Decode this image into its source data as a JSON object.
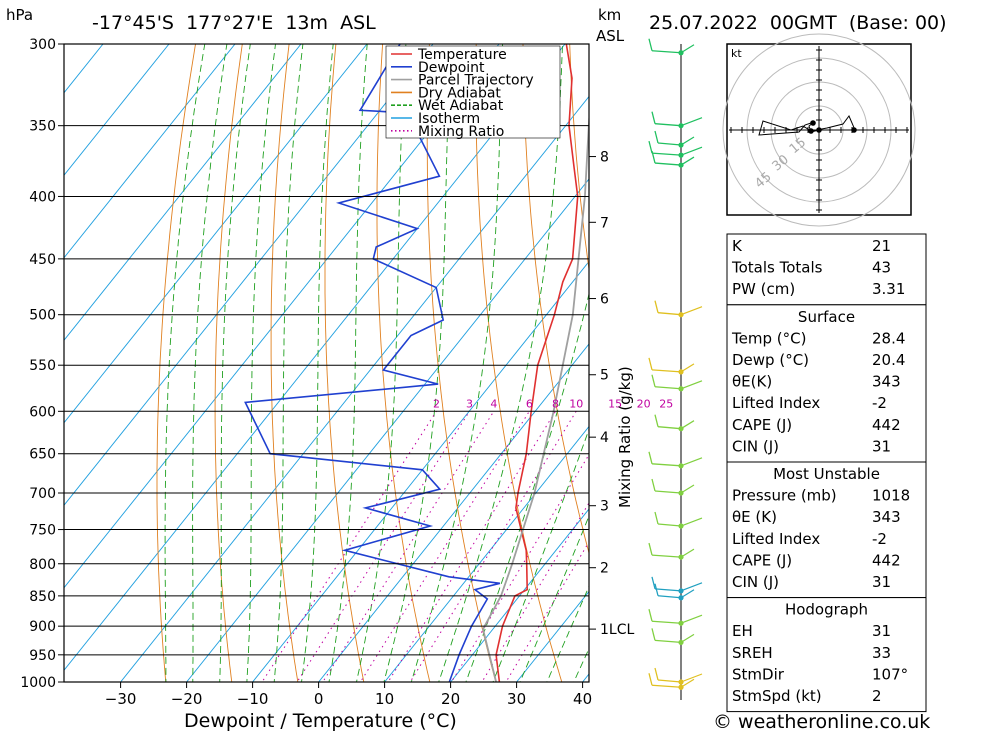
{
  "header": {
    "pressure_unit": "hPa",
    "location": "-17°45'S  177°27'E  13m  ASL",
    "km_label": "km",
    "asl_label": "ASL",
    "datetime": "25.07.2022  00GMT  (Base: 00)"
  },
  "footer": {
    "copyright": "© weatheronline.co.uk"
  },
  "colors": {
    "temperature": "#e03030",
    "dewpoint": "#2040d0",
    "parcel": "#a0a0a0",
    "dry_adiabat": "#e08020",
    "wet_adiabat": "#20a020",
    "isotherm": "#20a0e0",
    "mixing_ratio": "#c000a0"
  },
  "chart_data": {
    "type": "line",
    "title": "",
    "xlabel": "Dewpoint / Temperature (°C)",
    "ylabel": "hPa",
    "secondary_ylabel": "Mixing Ratio (g/kg)",
    "xlim": [
      -40,
      40
    ],
    "ylim": [
      1000,
      300
    ],
    "pressure_ticks": [
      300,
      350,
      400,
      450,
      500,
      550,
      600,
      650,
      700,
      750,
      800,
      850,
      900,
      950,
      1000
    ],
    "temperature_ticks": [
      -30,
      -20,
      -10,
      0,
      10,
      20,
      30,
      40
    ],
    "height_ticks": [
      {
        "label": "8",
        "pressure": 371
      },
      {
        "label": "7",
        "pressure": 420
      },
      {
        "label": "6",
        "pressure": 485
      },
      {
        "label": "5",
        "pressure": 560
      },
      {
        "label": "4",
        "pressure": 630
      },
      {
        "label": "3",
        "pressure": 717
      },
      {
        "label": "2",
        "pressure": 806
      },
      {
        "label": "1LCL",
        "pressure": 905
      }
    ],
    "mixing_ratio_labels": [
      "2",
      "3",
      "4",
      "6",
      "8",
      "10",
      "15",
      "20",
      "25"
    ],
    "legend": [
      "Temperature",
      "Dewpoint",
      "Parcel Trajectory",
      "Dry Adiabat",
      "Wet Adiabat",
      "Isotherm",
      "Mixing Ratio"
    ],
    "legend_position": "top-right",
    "series": [
      {
        "name": "Temperature",
        "points": [
          {
            "p": 1018,
            "t": 28.4
          },
          {
            "p": 1000,
            "t": 27.4
          },
          {
            "p": 950,
            "t": 23.6
          },
          {
            "p": 900,
            "t": 21.1
          },
          {
            "p": 850,
            "t": 19.3
          },
          {
            "p": 840,
            "t": 20.4
          },
          {
            "p": 800,
            "t": 17.2
          },
          {
            "p": 780,
            "t": 15.5
          },
          {
            "p": 750,
            "t": 12.2
          },
          {
            "p": 720,
            "t": 8.8
          },
          {
            "p": 700,
            "t": 7.3
          },
          {
            "p": 650,
            "t": 3.8
          },
          {
            "p": 600,
            "t": -0.6
          },
          {
            "p": 550,
            "t": -5.2
          },
          {
            "p": 500,
            "t": -8.8
          },
          {
            "p": 470,
            "t": -11.5
          },
          {
            "p": 450,
            "t": -12.8
          },
          {
            "p": 400,
            "t": -19.6
          },
          {
            "p": 380,
            "t": -23.4
          },
          {
            "p": 350,
            "t": -29.5
          },
          {
            "p": 320,
            "t": -34.8
          },
          {
            "p": 300,
            "t": -39.8
          }
        ]
      },
      {
        "name": "Dewpoint",
        "points": [
          {
            "p": 1018,
            "t": 20.4
          },
          {
            "p": 1000,
            "t": 19.8
          },
          {
            "p": 950,
            "t": 18.0
          },
          {
            "p": 900,
            "t": 16.4
          },
          {
            "p": 855,
            "t": 15.5
          },
          {
            "p": 840,
            "t": 12.5
          },
          {
            "p": 830,
            "t": 15.5
          },
          {
            "p": 820,
            "t": 7.0
          },
          {
            "p": 780,
            "t": -12.0
          },
          {
            "p": 745,
            "t": -2.0
          },
          {
            "p": 720,
            "t": -14.0
          },
          {
            "p": 695,
            "t": -5.0
          },
          {
            "p": 670,
            "t": -10.0
          },
          {
            "p": 650,
            "t": -35.0
          },
          {
            "p": 590,
            "t": -45.0
          },
          {
            "p": 570,
            "t": -18.0
          },
          {
            "p": 555,
            "t": -28.0
          },
          {
            "p": 520,
            "t": -28.0
          },
          {
            "p": 505,
            "t": -25.0
          },
          {
            "p": 475,
            "t": -30.0
          },
          {
            "p": 450,
            "t": -43.0
          },
          {
            "p": 440,
            "t": -44.0
          },
          {
            "p": 425,
            "t": -40.0
          },
          {
            "p": 405,
            "t": -55.0
          },
          {
            "p": 385,
            "t": -43.0
          },
          {
            "p": 350,
            "t": -53.0
          },
          {
            "p": 345,
            "t": -40.0
          },
          {
            "p": 340,
            "t": -63.0
          },
          {
            "p": 300,
            "t": -65.0
          }
        ]
      },
      {
        "name": "Parcel Trajectory",
        "points": [
          {
            "p": 1018,
            "t": 28.4
          },
          {
            "p": 905,
            "t": 18.5
          },
          {
            "p": 850,
            "t": 17.2
          },
          {
            "p": 800,
            "t": 15.0
          },
          {
            "p": 700,
            "t": 9.8
          },
          {
            "p": 600,
            "t": 2.8
          },
          {
            "p": 500,
            "t": -6.0
          },
          {
            "p": 400,
            "t": -18.5
          },
          {
            "p": 350,
            "t": -26.5
          },
          {
            "p": 300,
            "t": -35.5
          }
        ]
      }
    ],
    "wind_barbs": [
      {
        "p": 305
      },
      {
        "p": 350
      },
      {
        "p": 363
      },
      {
        "p": 370
      },
      {
        "p": 377
      },
      {
        "p": 500
      },
      {
        "p": 557
      },
      {
        "p": 575
      },
      {
        "p": 620
      },
      {
        "p": 665
      },
      {
        "p": 700
      },
      {
        "p": 745
      },
      {
        "p": 790
      },
      {
        "p": 842
      },
      {
        "p": 853
      },
      {
        "p": 895
      },
      {
        "p": 928
      },
      {
        "p": 1000
      },
      {
        "p": 1010
      }
    ]
  },
  "hodograph": {
    "unit_label": "kt",
    "ring_labels": [
      "15",
      "30",
      "45"
    ]
  },
  "indices": {
    "rows_top": [
      {
        "label": "K",
        "value": "21"
      },
      {
        "label": "Totals Totals",
        "value": "43"
      },
      {
        "label": "PW (cm)",
        "value": "3.31"
      }
    ],
    "surface": {
      "title": "Surface",
      "rows": [
        {
          "label": "Temp (°C)",
          "value": "28.4"
        },
        {
          "label": "Dewp (°C)",
          "value": "20.4"
        },
        {
          "label": "θE(K)",
          "value": "343"
        },
        {
          "label": "Lifted Index",
          "value": "-2"
        },
        {
          "label": "CAPE (J)",
          "value": "442"
        },
        {
          "label": "CIN (J)",
          "value": "31"
        }
      ]
    },
    "most_unstable": {
      "title": "Most Unstable",
      "rows": [
        {
          "label": "Pressure (mb)",
          "value": "1018"
        },
        {
          "label": "θE (K)",
          "value": "343"
        },
        {
          "label": "Lifted Index",
          "value": "-2"
        },
        {
          "label": "CAPE (J)",
          "value": "442"
        },
        {
          "label": "CIN (J)",
          "value": "31"
        }
      ]
    },
    "hodograph_box": {
      "title": "Hodograph",
      "rows": [
        {
          "label": "EH",
          "value": "31"
        },
        {
          "label": "SREH",
          "value": "33"
        },
        {
          "label": "StmDir",
          "value": "107°"
        },
        {
          "label": "StmSpd (kt)",
          "value": "2"
        }
      ]
    }
  }
}
